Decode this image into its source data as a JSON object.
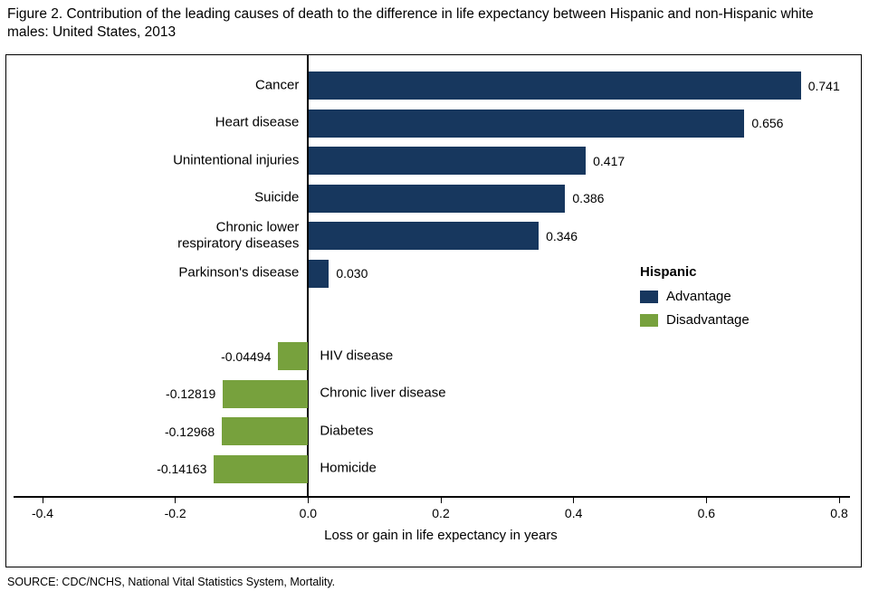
{
  "figure": {
    "title": "Figure 2. Contribution of the leading causes of death to the difference in life expectancy between Hispanic and non-Hispanic white males: United States, 2013",
    "source": "SOURCE: CDC/NCHS, National Vital Statistics System, Mortality."
  },
  "chart_data": {
    "type": "bar",
    "orientation": "horizontal",
    "title": "Figure 2. Contribution of the leading causes of death to the difference in life expectancy between Hispanic and non-Hispanic white males: United States, 2013",
    "xlabel": "Loss or gain in life expectancy in years",
    "ylabel": "",
    "xlim": [
      -0.4,
      0.8
    ],
    "xticks": [
      -0.4,
      -0.2,
      0.0,
      0.2,
      0.4,
      0.6,
      0.8
    ],
    "xtick_labels": [
      "-0.4",
      "-0.2",
      "0.0",
      "0.2",
      "0.4",
      "0.6",
      "0.8"
    ],
    "grid": false,
    "colors": {
      "advantage": "#17375e",
      "disadvantage": "#77a13d"
    },
    "legend": {
      "title": "Hispanic",
      "position": "right-middle",
      "entries": [
        {
          "key": "advantage",
          "label": "Advantage",
          "color": "#17375e"
        },
        {
          "key": "disadvantage",
          "label": "Disadvantage",
          "color": "#77a13d"
        }
      ]
    },
    "bars": [
      {
        "category": "Cancer",
        "value": 0.741,
        "display": "0.741",
        "group": "advantage"
      },
      {
        "category": "Heart disease",
        "value": 0.656,
        "display": "0.656",
        "group": "advantage"
      },
      {
        "category": "Unintentional injuries",
        "value": 0.417,
        "display": "0.417",
        "group": "advantage"
      },
      {
        "category": "Suicide",
        "value": 0.386,
        "display": "0.386",
        "group": "advantage"
      },
      {
        "category": "Chronic lower\nrespiratory diseases",
        "value": 0.346,
        "display": "0.346",
        "group": "advantage"
      },
      {
        "category": "Parkinson's disease",
        "value": 0.03,
        "display": "0.030",
        "group": "advantage"
      },
      {
        "category": "HIV disease",
        "value": -0.04494,
        "display": "-0.04494",
        "group": "disadvantage"
      },
      {
        "category": "Chronic liver disease",
        "value": -0.12819,
        "display": "-0.12819",
        "group": "disadvantage"
      },
      {
        "category": "Diabetes",
        "value": -0.12968,
        "display": "-0.12968",
        "group": "disadvantage"
      },
      {
        "category": "Homicide",
        "value": -0.14163,
        "display": "-0.14163",
        "group": "disadvantage"
      }
    ]
  }
}
